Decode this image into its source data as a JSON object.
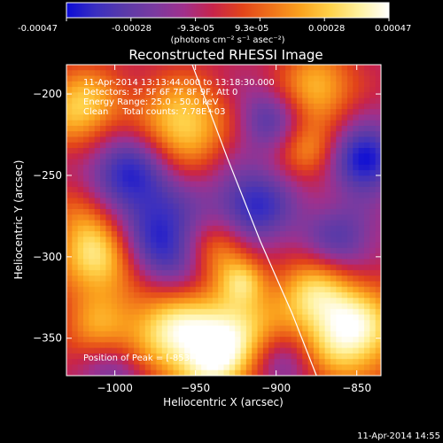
{
  "colorbar": {
    "tick_labels": [
      "-0.00047",
      "-0.00028",
      "-9.3e-05",
      "9.3e-05",
      "0.00028",
      "0.00047"
    ],
    "units_label": "(photons cm⁻² s⁻¹ asec⁻²)",
    "colors": [
      "#0b0bd6",
      "#3a2fc0",
      "#5b3aa8",
      "#7a3aa0",
      "#a0308c",
      "#c8244a",
      "#e2441a",
      "#f0731a",
      "#fba31e",
      "#ffd24a",
      "#fff2a0",
      "#ffffff"
    ]
  },
  "chart_data": {
    "type": "heatmap",
    "title": "Reconstructed RHESSI Image",
    "xlabel": "Heliocentric X (arcsec)",
    "ylabel": "Heliocentric Y (arcsec)",
    "xlim": [
      -1030,
      -835
    ],
    "ylim": [
      -373,
      -182
    ],
    "x_ticks": [
      -1000,
      -950,
      -900,
      -850
    ],
    "x_tick_labels": [
      "−1000",
      "−950",
      "−900",
      "−850"
    ],
    "y_ticks": [
      -200,
      -250,
      -300,
      -350
    ],
    "y_tick_labels": [
      "−200",
      "−250",
      "−300",
      "−350"
    ],
    "value_range": [
      -0.00047,
      0.00047
    ],
    "peak": [
      -853,
      -341
    ],
    "annotations": [
      "11-Apr-2014 13:13:44.000 to 13:18:30.000",
      "Detectors: 3F 5F 6F 7F 8F 9F, Att 0",
      "Energy Range: 25.0 - 50.0 keV",
      "Clean     Total counts: 7.78E+03",
      "Position of Peak = [-853,-341]"
    ],
    "limb_curve": [
      [
        -952,
        -182
      ],
      [
        -930,
        -240
      ],
      [
        -910,
        -290
      ],
      [
        -890,
        -335
      ],
      [
        -875,
        -373
      ]
    ],
    "blobs": [
      {
        "x": -960,
        "y": -220,
        "s": 20,
        "a": 1.0
      },
      {
        "x": -1020,
        "y": -210,
        "s": 18,
        "a": 0.9
      },
      {
        "x": -990,
        "y": -248,
        "s": 22,
        "a": -0.85
      },
      {
        "x": -1010,
        "y": -300,
        "s": 18,
        "a": 1.0
      },
      {
        "x": -970,
        "y": -295,
        "s": 20,
        "a": -0.8
      },
      {
        "x": -915,
        "y": -270,
        "s": 18,
        "a": -0.75
      },
      {
        "x": -935,
        "y": -295,
        "s": 14,
        "a": 0.7
      },
      {
        "x": -855,
        "y": -345,
        "s": 22,
        "a": 1.2
      },
      {
        "x": -880,
        "y": -320,
        "s": 16,
        "a": 0.6
      },
      {
        "x": -845,
        "y": -240,
        "s": 14,
        "a": -0.9
      },
      {
        "x": -875,
        "y": -195,
        "s": 16,
        "a": 0.75
      },
      {
        "x": -880,
        "y": -235,
        "s": 12,
        "a": 0.55
      },
      {
        "x": -965,
        "y": -345,
        "s": 20,
        "a": 1.0
      },
      {
        "x": -1010,
        "y": -345,
        "s": 16,
        "a": 0.55
      },
      {
        "x": -925,
        "y": -345,
        "s": 18,
        "a": 0.9
      },
      {
        "x": -940,
        "y": -370,
        "s": 16,
        "a": 0.7
      },
      {
        "x": -860,
        "y": -290,
        "s": 16,
        "a": -0.55
      },
      {
        "x": -905,
        "y": -215,
        "s": 14,
        "a": -0.5
      },
      {
        "x": -1020,
        "y": -270,
        "s": 14,
        "a": 0.4
      },
      {
        "x": -895,
        "y": -365,
        "s": 14,
        "a": -0.4
      },
      {
        "x": -1000,
        "y": -370,
        "s": 14,
        "a": -0.45
      },
      {
        "x": -920,
        "y": -315,
        "s": 10,
        "a": 0.55
      }
    ]
  },
  "footer": {
    "timestamp": "11-Apr-2014 14:55"
  }
}
